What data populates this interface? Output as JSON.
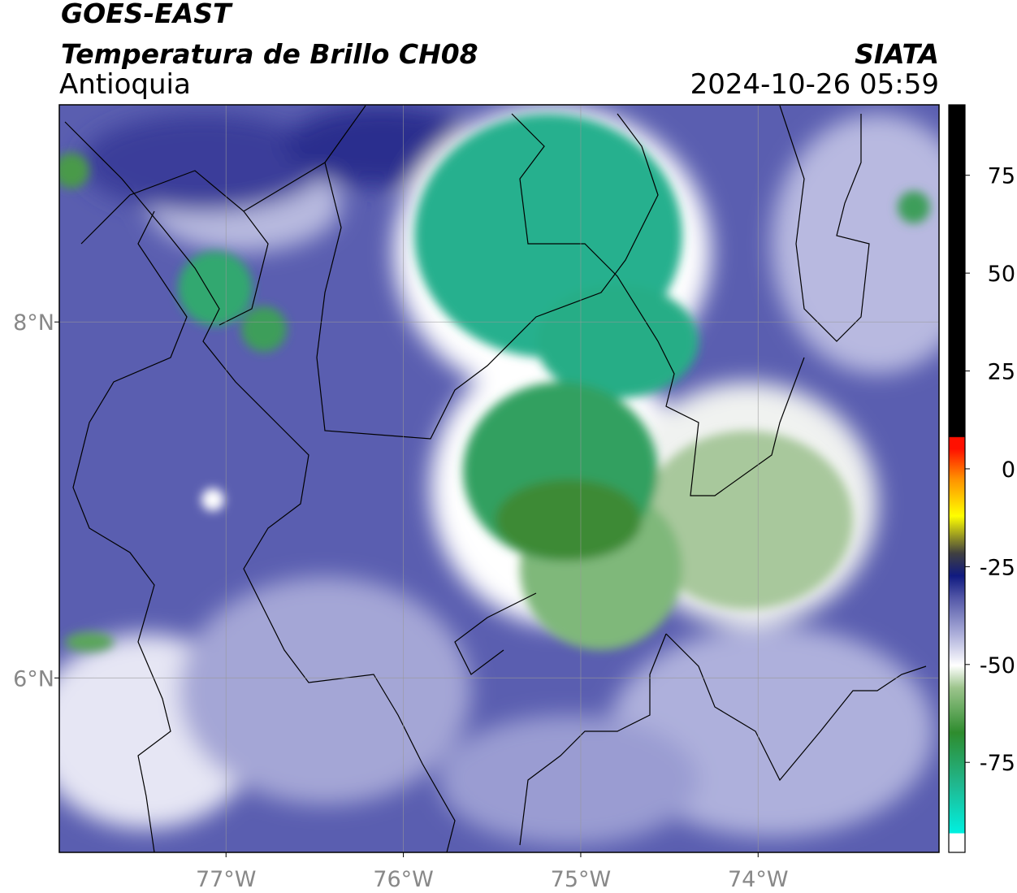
{
  "header": {
    "satellite": "GOES-EAST",
    "product": "Temperatura de Brillo CH08",
    "region": "Antioquia",
    "source": "SIATA",
    "datetime": "2024-10-26 05:59"
  },
  "map": {
    "xlim": [
      -77.94,
      -72.98
    ],
    "ylim": [
      5.02,
      9.22
    ],
    "xticks": [
      {
        "value": -77,
        "label": "77°W"
      },
      {
        "value": -76,
        "label": "76°W"
      },
      {
        "value": -75,
        "label": "75°W"
      },
      {
        "value": -74,
        "label": "74°W"
      }
    ],
    "yticks": [
      {
        "value": 8,
        "label": "8°N"
      },
      {
        "value": 6,
        "label": "6°N"
      }
    ]
  },
  "colorbar": {
    "lim": [
      -98,
      93
    ],
    "ticks": [
      75,
      50,
      25,
      0,
      -25,
      -50,
      -75
    ]
  }
}
